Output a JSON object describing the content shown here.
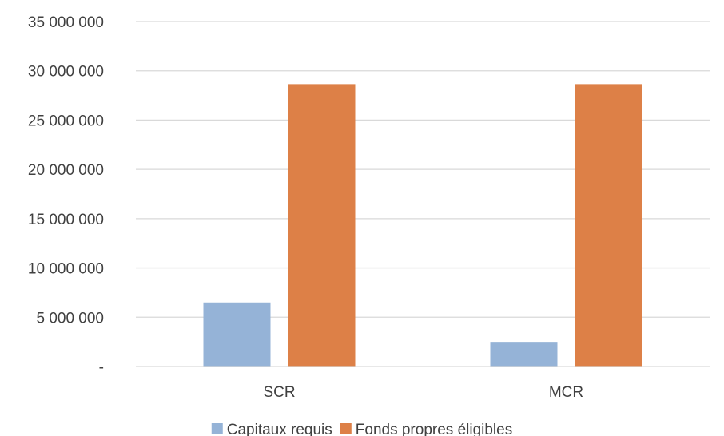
{
  "chart_data": {
    "type": "bar",
    "categories": [
      "SCR",
      "MCR"
    ],
    "series": [
      {
        "name": "Capitaux requis",
        "values": [
          6500000,
          2500000
        ],
        "color": "#95b3d7"
      },
      {
        "name": "Fonds propres éligibles",
        "values": [
          28650000,
          28650000
        ],
        "color": "#dd8047"
      }
    ],
    "ylim": [
      0,
      35000000
    ],
    "yticks": [
      0,
      5000000,
      10000000,
      15000000,
      20000000,
      25000000,
      30000000,
      35000000
    ],
    "ytick_labels": [
      "-",
      "5 000 000",
      "10 000 000",
      "15 000 000",
      "20 000 000",
      "25 000 000",
      "30 000 000",
      "35 000 000"
    ],
    "grid": true,
    "legend_position": "bottom"
  }
}
